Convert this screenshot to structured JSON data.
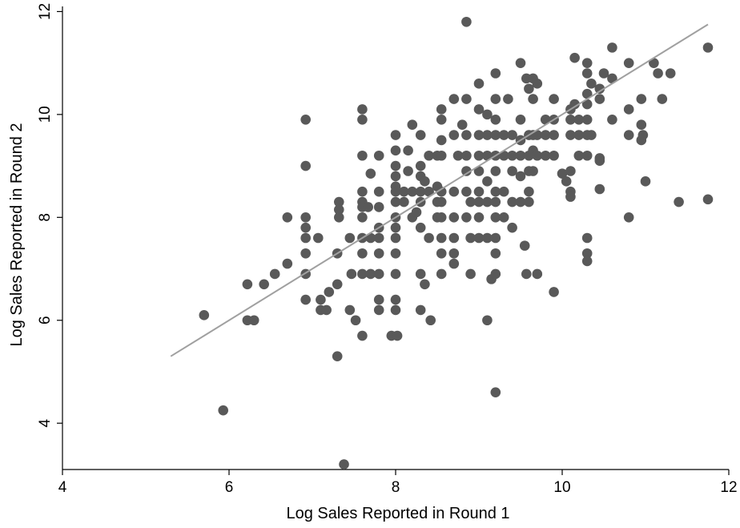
{
  "chart_data": {
    "type": "scatter",
    "title": "",
    "xlabel": "Log Sales Reported in Round 1",
    "ylabel": "Log Sales Reported in Round 2",
    "xlim": [
      4,
      12
    ],
    "ylim": [
      3.1,
      12.1
    ],
    "xticks": [
      4,
      6,
      8,
      10,
      12
    ],
    "yticks": [
      4,
      6,
      8,
      10,
      12
    ],
    "grid": false,
    "legend": "none",
    "colors": {
      "points": "#595959",
      "fit_line": "#a0a0a0",
      "axis": "#000000"
    },
    "fit_line": {
      "x": [
        5.3,
        11.75
      ],
      "y": [
        5.3,
        11.75
      ]
    },
    "points": [
      [
        5.7,
        6.1
      ],
      [
        5.93,
        4.25
      ],
      [
        6.22,
        6.7
      ],
      [
        6.22,
        6.0
      ],
      [
        6.3,
        6.0
      ],
      [
        6.42,
        6.7
      ],
      [
        6.55,
        6.9
      ],
      [
        6.7,
        8.0
      ],
      [
        6.7,
        7.1
      ],
      [
        6.92,
        9.9
      ],
      [
        6.92,
        9.0
      ],
      [
        6.92,
        8.0
      ],
      [
        6.92,
        7.8
      ],
      [
        6.92,
        7.6
      ],
      [
        6.92,
        7.3
      ],
      [
        6.92,
        6.9
      ],
      [
        6.92,
        6.4
      ],
      [
        7.07,
        7.6
      ],
      [
        7.1,
        6.4
      ],
      [
        7.1,
        6.2
      ],
      [
        7.17,
        6.2
      ],
      [
        7.2,
        6.55
      ],
      [
        7.3,
        6.7
      ],
      [
        7.32,
        8.3
      ],
      [
        7.32,
        8.15
      ],
      [
        7.32,
        8.0
      ],
      [
        7.3,
        7.3
      ],
      [
        7.3,
        5.3
      ],
      [
        7.38,
        3.2
      ],
      [
        7.45,
        7.6
      ],
      [
        7.47,
        6.9
      ],
      [
        7.45,
        6.2
      ],
      [
        7.52,
        6.0
      ],
      [
        7.6,
        10.1
      ],
      [
        7.6,
        9.9
      ],
      [
        7.6,
        9.2
      ],
      [
        7.6,
        8.5
      ],
      [
        7.6,
        8.3
      ],
      [
        7.6,
        8.2
      ],
      [
        7.6,
        8.0
      ],
      [
        7.6,
        7.6
      ],
      [
        7.6,
        7.3
      ],
      [
        7.6,
        6.9
      ],
      [
        7.6,
        5.7
      ],
      [
        7.67,
        8.2
      ],
      [
        7.7,
        8.85
      ],
      [
        7.7,
        7.6
      ],
      [
        7.7,
        6.9
      ],
      [
        7.8,
        9.2
      ],
      [
        7.8,
        8.5
      ],
      [
        7.8,
        8.2
      ],
      [
        7.8,
        7.8
      ],
      [
        7.8,
        7.6
      ],
      [
        7.8,
        7.3
      ],
      [
        7.8,
        6.9
      ],
      [
        7.8,
        6.4
      ],
      [
        7.8,
        6.2
      ],
      [
        7.95,
        5.7
      ],
      [
        8.0,
        9.6
      ],
      [
        8.0,
        9.3
      ],
      [
        8.0,
        9.0
      ],
      [
        8.0,
        8.8
      ],
      [
        8.0,
        8.6
      ],
      [
        8.0,
        8.5
      ],
      [
        8.0,
        8.3
      ],
      [
        8.0,
        8.0
      ],
      [
        8.0,
        7.8
      ],
      [
        8.0,
        7.6
      ],
      [
        8.0,
        7.3
      ],
      [
        8.0,
        6.9
      ],
      [
        8.0,
        6.4
      ],
      [
        8.0,
        6.2
      ],
      [
        8.02,
        5.7
      ],
      [
        8.1,
        8.5
      ],
      [
        8.1,
        8.3
      ],
      [
        8.15,
        9.3
      ],
      [
        8.15,
        8.9
      ],
      [
        8.2,
        9.8
      ],
      [
        8.2,
        8.5
      ],
      [
        8.2,
        8.0
      ],
      [
        8.25,
        8.1
      ],
      [
        8.3,
        9.6
      ],
      [
        8.3,
        9.0
      ],
      [
        8.3,
        8.8
      ],
      [
        8.3,
        8.5
      ],
      [
        8.3,
        8.3
      ],
      [
        8.3,
        7.8
      ],
      [
        8.3,
        6.9
      ],
      [
        8.3,
        6.2
      ],
      [
        8.35,
        8.7
      ],
      [
        8.35,
        6.7
      ],
      [
        8.4,
        9.2
      ],
      [
        8.4,
        8.5
      ],
      [
        8.4,
        7.6
      ],
      [
        8.42,
        6.0
      ],
      [
        8.5,
        9.2
      ],
      [
        8.5,
        8.6
      ],
      [
        8.5,
        8.3
      ],
      [
        8.5,
        8.0
      ],
      [
        8.55,
        10.1
      ],
      [
        8.55,
        9.9
      ],
      [
        8.55,
        9.5
      ],
      [
        8.55,
        9.2
      ],
      [
        8.55,
        8.5
      ],
      [
        8.55,
        8.3
      ],
      [
        8.55,
        8.0
      ],
      [
        8.55,
        7.6
      ],
      [
        8.55,
        7.3
      ],
      [
        8.55,
        6.9
      ],
      [
        8.7,
        9.6
      ],
      [
        8.7,
        8.5
      ],
      [
        8.7,
        8.0
      ],
      [
        8.7,
        7.6
      ],
      [
        8.7,
        7.3
      ],
      [
        8.7,
        7.1
      ],
      [
        8.7,
        10.3
      ],
      [
        8.75,
        9.2
      ],
      [
        8.8,
        9.8
      ],
      [
        8.85,
        11.8
      ],
      [
        8.85,
        10.3
      ],
      [
        8.85,
        9.6
      ],
      [
        8.85,
        9.2
      ],
      [
        8.85,
        8.9
      ],
      [
        8.85,
        8.5
      ],
      [
        8.85,
        8.0
      ],
      [
        8.9,
        8.3
      ],
      [
        8.9,
        7.6
      ],
      [
        8.9,
        6.9
      ],
      [
        9.0,
        10.6
      ],
      [
        9.0,
        10.1
      ],
      [
        9.0,
        9.6
      ],
      [
        9.0,
        9.2
      ],
      [
        9.0,
        8.9
      ],
      [
        9.0,
        8.5
      ],
      [
        9.0,
        8.3
      ],
      [
        9.0,
        8.0
      ],
      [
        9.0,
        7.6
      ],
      [
        9.1,
        10.0
      ],
      [
        9.1,
        9.6
      ],
      [
        9.1,
        9.2
      ],
      [
        9.1,
        8.7
      ],
      [
        9.1,
        8.3
      ],
      [
        9.1,
        7.6
      ],
      [
        9.1,
        6.0
      ],
      [
        9.15,
        6.8
      ],
      [
        9.2,
        10.8
      ],
      [
        9.2,
        10.3
      ],
      [
        9.2,
        9.9
      ],
      [
        9.2,
        9.6
      ],
      [
        9.2,
        9.2
      ],
      [
        9.2,
        8.9
      ],
      [
        9.2,
        8.5
      ],
      [
        9.2,
        8.3
      ],
      [
        9.2,
        8.0
      ],
      [
        9.2,
        7.6
      ],
      [
        9.2,
        7.3
      ],
      [
        9.2,
        6.9
      ],
      [
        9.2,
        4.6
      ],
      [
        9.3,
        9.6
      ],
      [
        9.3,
        9.2
      ],
      [
        9.3,
        8.5
      ],
      [
        9.3,
        8.0
      ],
      [
        9.35,
        10.3
      ],
      [
        9.4,
        9.6
      ],
      [
        9.4,
        9.2
      ],
      [
        9.4,
        8.9
      ],
      [
        9.4,
        8.3
      ],
      [
        9.4,
        7.8
      ],
      [
        9.5,
        11.0
      ],
      [
        9.5,
        9.9
      ],
      [
        9.5,
        9.5
      ],
      [
        9.5,
        9.2
      ],
      [
        9.5,
        8.8
      ],
      [
        9.5,
        8.3
      ],
      [
        9.55,
        7.45
      ],
      [
        9.57,
        6.9
      ],
      [
        9.57,
        10.7
      ],
      [
        9.6,
        10.5
      ],
      [
        9.6,
        9.6
      ],
      [
        9.6,
        9.2
      ],
      [
        9.6,
        8.9
      ],
      [
        9.6,
        8.5
      ],
      [
        9.6,
        8.3
      ],
      [
        9.65,
        10.7
      ],
      [
        9.65,
        10.3
      ],
      [
        9.65,
        9.6
      ],
      [
        9.65,
        9.3
      ],
      [
        9.65,
        8.9
      ],
      [
        9.7,
        10.6
      ],
      [
        9.7,
        9.6
      ],
      [
        9.7,
        9.2
      ],
      [
        9.7,
        6.9
      ],
      [
        9.8,
        9.9
      ],
      [
        9.8,
        9.6
      ],
      [
        9.8,
        9.2
      ],
      [
        9.9,
        10.3
      ],
      [
        9.9,
        9.9
      ],
      [
        9.9,
        9.6
      ],
      [
        9.9,
        9.2
      ],
      [
        9.9,
        6.55
      ],
      [
        10.0,
        8.85
      ],
      [
        10.05,
        8.7
      ],
      [
        10.1,
        10.1
      ],
      [
        10.1,
        9.9
      ],
      [
        10.1,
        9.6
      ],
      [
        10.1,
        8.9
      ],
      [
        10.1,
        8.5
      ],
      [
        10.1,
        8.4
      ],
      [
        10.15,
        11.1
      ],
      [
        10.15,
        10.2
      ],
      [
        10.2,
        9.9
      ],
      [
        10.2,
        9.6
      ],
      [
        10.2,
        9.2
      ],
      [
        10.3,
        11.0
      ],
      [
        10.3,
        10.8
      ],
      [
        10.3,
        10.4
      ],
      [
        10.3,
        10.2
      ],
      [
        10.3,
        9.9
      ],
      [
        10.3,
        9.6
      ],
      [
        10.3,
        9.2
      ],
      [
        10.3,
        7.6
      ],
      [
        10.3,
        7.3
      ],
      [
        10.3,
        7.15
      ],
      [
        10.35,
        10.6
      ],
      [
        10.35,
        9.6
      ],
      [
        10.45,
        10.5
      ],
      [
        10.45,
        10.3
      ],
      [
        10.45,
        9.15
      ],
      [
        10.45,
        9.1
      ],
      [
        10.45,
        8.55
      ],
      [
        10.5,
        10.8
      ],
      [
        10.6,
        11.3
      ],
      [
        10.6,
        10.7
      ],
      [
        10.6,
        9.9
      ],
      [
        10.8,
        11.0
      ],
      [
        10.8,
        10.1
      ],
      [
        10.8,
        9.6
      ],
      [
        10.8,
        8.0
      ],
      [
        10.95,
        9.8
      ],
      [
        10.95,
        9.5
      ],
      [
        10.95,
        10.3
      ],
      [
        10.97,
        9.6
      ],
      [
        11.0,
        8.7
      ],
      [
        11.1,
        11.0
      ],
      [
        11.15,
        10.8
      ],
      [
        11.2,
        10.3
      ],
      [
        11.3,
        10.8
      ],
      [
        11.4,
        8.3
      ],
      [
        11.75,
        11.3
      ],
      [
        11.75,
        8.35
      ]
    ]
  }
}
